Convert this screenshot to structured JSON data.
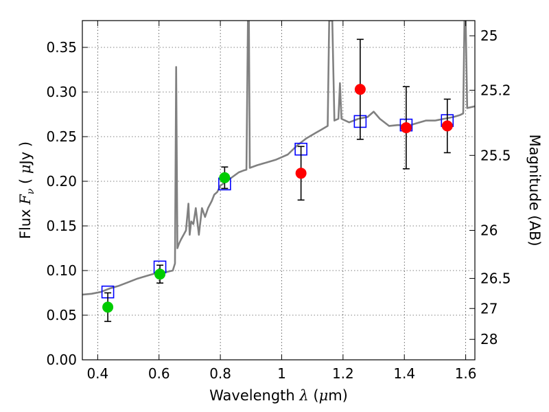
{
  "chart_data": {
    "type": "scatter",
    "title": "",
    "xlabel": "Wavelength  λ (μm)",
    "ylabel": "Flux  F_ν  ( μJy )",
    "y2label": "Magnitude (AB)",
    "xlim": [
      0.35,
      1.63
    ],
    "ylim": [
      0.0,
      0.38
    ],
    "grid": true,
    "x_ticks": [
      0.4,
      0.6,
      0.8,
      1.0,
      1.2,
      1.4,
      1.6
    ],
    "x_tick_labels": [
      "0.4",
      "0.6",
      "0.8",
      "1",
      "1.2",
      "1.4",
      "1.6"
    ],
    "y_ticks": [
      0.0,
      0.05,
      0.1,
      0.15,
      0.2,
      0.25,
      0.3,
      0.35
    ],
    "y_tick_labels": [
      "0.00",
      "0.05",
      "0.10",
      "0.15",
      "0.20",
      "0.25",
      "0.30",
      "0.35"
    ],
    "y2_ticks": [
      {
        "label": "25",
        "flux": 0.363
      },
      {
        "label": "25.2",
        "flux": 0.302
      },
      {
        "label": "25.5",
        "flux": 0.229
      },
      {
        "label": "26",
        "flux": 0.145
      },
      {
        "label": "26.5",
        "flux": 0.0912
      },
      {
        "label": "27",
        "flux": 0.0575
      },
      {
        "label": "28",
        "flux": 0.0229
      }
    ],
    "series": [
      {
        "kind": "spectrum",
        "color": "#808080",
        "points": [
          [
            0.35,
            0.073
          ],
          [
            0.38,
            0.074
          ],
          [
            0.41,
            0.076
          ],
          [
            0.44,
            0.08
          ],
          [
            0.47,
            0.083
          ],
          [
            0.5,
            0.087
          ],
          [
            0.53,
            0.091
          ],
          [
            0.56,
            0.094
          ],
          [
            0.59,
            0.097
          ],
          [
            0.62,
            0.098
          ],
          [
            0.645,
            0.1
          ],
          [
            0.652,
            0.108
          ],
          [
            0.656,
            0.328
          ],
          [
            0.66,
            0.125
          ],
          [
            0.665,
            0.13
          ],
          [
            0.672,
            0.135
          ],
          [
            0.68,
            0.14
          ],
          [
            0.688,
            0.145
          ],
          [
            0.696,
            0.175
          ],
          [
            0.7,
            0.14
          ],
          [
            0.705,
            0.155
          ],
          [
            0.712,
            0.152
          ],
          [
            0.72,
            0.17
          ],
          [
            0.73,
            0.14
          ],
          [
            0.74,
            0.17
          ],
          [
            0.75,
            0.16
          ],
          [
            0.76,
            0.17
          ],
          [
            0.772,
            0.178
          ],
          [
            0.78,
            0.185
          ],
          [
            0.79,
            0.188
          ],
          [
            0.8,
            0.195
          ],
          [
            0.82,
            0.2
          ],
          [
            0.84,
            0.205
          ],
          [
            0.86,
            0.21
          ],
          [
            0.875,
            0.212
          ],
          [
            0.885,
            0.213
          ],
          [
            0.89,
            0.38
          ],
          [
            0.893,
            0.38
          ],
          [
            0.896,
            0.215
          ],
          [
            0.92,
            0.218
          ],
          [
            0.95,
            0.221
          ],
          [
            0.98,
            0.224
          ],
          [
            1.0,
            0.227
          ],
          [
            1.02,
            0.23
          ],
          [
            1.05,
            0.24
          ],
          [
            1.08,
            0.248
          ],
          [
            1.11,
            0.254
          ],
          [
            1.13,
            0.258
          ],
          [
            1.15,
            0.262
          ],
          [
            1.155,
            0.38
          ],
          [
            1.165,
            0.38
          ],
          [
            1.172,
            0.268
          ],
          [
            1.185,
            0.27
          ],
          [
            1.19,
            0.31
          ],
          [
            1.195,
            0.27
          ],
          [
            1.22,
            0.266
          ],
          [
            1.25,
            0.27
          ],
          [
            1.28,
            0.272
          ],
          [
            1.3,
            0.278
          ],
          [
            1.32,
            0.27
          ],
          [
            1.35,
            0.262
          ],
          [
            1.38,
            0.263
          ],
          [
            1.41,
            0.262
          ],
          [
            1.44,
            0.265
          ],
          [
            1.47,
            0.268
          ],
          [
            1.5,
            0.268
          ],
          [
            1.53,
            0.27
          ],
          [
            1.56,
            0.272
          ],
          [
            1.58,
            0.274
          ],
          [
            1.592,
            0.276
          ],
          [
            1.596,
            0.38
          ],
          [
            1.6,
            0.38
          ],
          [
            1.605,
            0.282
          ],
          [
            1.63,
            0.284
          ]
        ]
      },
      {
        "kind": "model-photometry",
        "marker": "square",
        "color": "#0000ff",
        "x": [
          0.433,
          0.603,
          0.814,
          1.063,
          1.256,
          1.406,
          1.54
        ],
        "y": [
          0.076,
          0.104,
          0.197,
          0.236,
          0.267,
          0.263,
          0.268
        ]
      },
      {
        "kind": "observed-green",
        "marker": "circle",
        "color": "#00cc00",
        "x": [
          0.433,
          0.603,
          0.814
        ],
        "y": [
          0.059,
          0.096,
          0.204
        ],
        "err": [
          0.016,
          0.01,
          0.012
        ]
      },
      {
        "kind": "observed-red",
        "marker": "circle",
        "color": "#ff0000",
        "x": [
          1.063,
          1.256,
          1.406,
          1.54
        ],
        "y": [
          0.209,
          0.303,
          0.26,
          0.262
        ],
        "err": [
          0.03,
          0.056,
          0.046,
          0.03
        ]
      }
    ]
  }
}
